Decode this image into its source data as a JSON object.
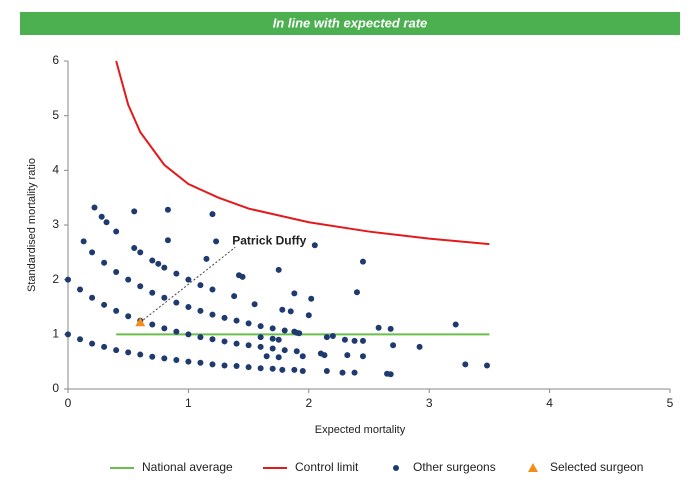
{
  "chart_data": {
    "type": "scatter",
    "title": "In line with expected rate",
    "x_label": "Expected mortality",
    "y_label": "Standardised mortality ratio",
    "xlim": [
      0,
      5
    ],
    "ylim": [
      0,
      6
    ],
    "xticks": [
      0,
      1,
      2,
      3,
      4,
      5
    ],
    "yticks": [
      0,
      1,
      2,
      3,
      4,
      5,
      6
    ],
    "grid": false,
    "legend": "bottom",
    "annotation": "Patrick Duffy",
    "series": [
      {
        "name": "National average",
        "type": "line",
        "color": "#6abf4b",
        "x": [
          0.4,
          3.5
        ],
        "values": [
          1,
          1
        ]
      },
      {
        "name": "Control limit",
        "type": "line",
        "color": "#e31a1c",
        "x": [
          0.4,
          0.5,
          0.6,
          0.8,
          1.0,
          1.25,
          1.5,
          2.0,
          2.5,
          3.0,
          3.5
        ],
        "values": [
          6.0,
          5.2,
          4.7,
          4.1,
          3.75,
          3.5,
          3.3,
          3.05,
          2.88,
          2.75,
          2.65
        ]
      },
      {
        "name": "Other surgeons",
        "type": "scatter",
        "color": "#1f3a6e",
        "x": [
          0,
          0.1,
          0.2,
          0.3,
          0.4,
          0.5,
          0.6,
          0.7,
          0.8,
          0.9,
          1.0,
          1.1,
          1.2,
          1.3,
          1.4,
          1.5,
          1.6,
          1.7,
          0,
          0.1,
          0.2,
          0.3,
          0.4,
          0.5,
          0.6,
          0.7,
          0.8,
          0.9,
          1.0,
          1.1,
          1.2,
          1.3,
          1.4,
          1.5,
          1.6,
          1.7,
          1.8,
          1.9,
          0.2,
          0.3,
          0.4,
          0.5,
          0.6,
          0.7,
          0.8,
          0.9,
          1.0,
          1.1,
          1.2,
          1.3,
          1.4,
          1.5,
          1.6,
          1.7,
          1.8,
          1.9,
          0.55,
          0.6,
          0.7,
          0.75,
          0.8,
          0.9,
          1.0,
          1.1,
          1.2,
          0.22,
          0.28,
          0.32,
          0.4,
          0.55,
          0.83,
          1.2,
          0.13,
          0.83,
          1.23,
          1.15,
          1.42,
          1.45,
          1.75,
          2.05,
          2.45,
          1.88,
          2.02,
          2.4,
          1.78,
          1.85,
          2.0,
          1.38,
          1.55,
          1.88,
          1.92,
          2.15,
          2.2,
          2.3,
          2.38,
          2.45,
          2.58,
          2.68,
          3.22,
          2.7,
          2.92,
          2.1,
          2.13,
          2.32,
          2.45,
          3.3,
          3.48,
          1.78,
          1.88,
          1.95,
          2.15,
          2.28,
          2.38,
          2.65,
          2.68,
          1.65,
          1.75,
          1.7,
          1.75,
          1.6,
          1.95
        ],
        "values": [
          1.0,
          0.91,
          0.83,
          0.77,
          0.71,
          0.67,
          0.63,
          0.59,
          0.56,
          0.53,
          0.5,
          0.48,
          0.45,
          0.43,
          0.42,
          0.4,
          0.38,
          0.37,
          2.0,
          1.82,
          1.67,
          1.54,
          1.43,
          1.33,
          1.25,
          1.18,
          1.11,
          1.05,
          1.0,
          0.95,
          0.91,
          0.87,
          0.83,
          0.8,
          0.77,
          0.74,
          0.71,
          0.69,
          2.5,
          2.31,
          2.14,
          2.0,
          1.88,
          1.76,
          1.67,
          1.58,
          1.5,
          1.43,
          1.36,
          1.3,
          1.25,
          1.2,
          1.15,
          1.11,
          1.07,
          1.03,
          2.58,
          2.5,
          2.35,
          2.29,
          2.22,
          2.11,
          2.0,
          1.9,
          1.82,
          3.32,
          3.15,
          3.05,
          2.88,
          3.25,
          3.28,
          3.2,
          2.7,
          2.72,
          2.7,
          2.38,
          2.08,
          2.05,
          2.18,
          2.63,
          2.33,
          1.75,
          1.65,
          1.77,
          1.45,
          1.42,
          1.35,
          1.7,
          1.55,
          1.05,
          1.02,
          0.95,
          0.97,
          0.9,
          0.88,
          0.88,
          1.12,
          1.1,
          1.18,
          0.8,
          0.77,
          0.65,
          0.62,
          0.62,
          0.6,
          0.45,
          0.43,
          0.35,
          0.35,
          0.33,
          0.33,
          0.3,
          0.3,
          0.28,
          0.27,
          0.6,
          0.58,
          0.92,
          0.9,
          0.95,
          0.6
        ]
      },
      {
        "name": "Selected surgeon",
        "type": "triangle",
        "color": "#f28e1c",
        "x": [
          0.6
        ],
        "values": [
          1.22
        ]
      }
    ]
  }
}
